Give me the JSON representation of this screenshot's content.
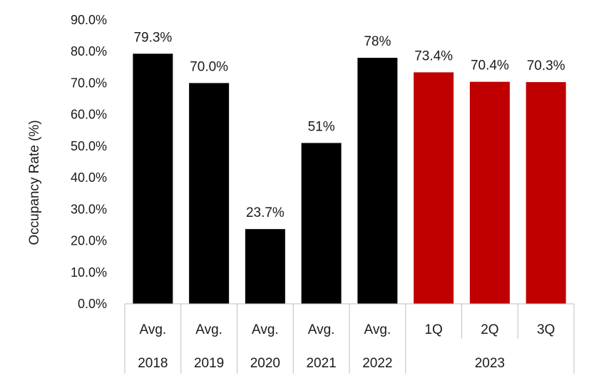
{
  "chart_data": {
    "type": "bar",
    "ylabel": "Occupancy Rate (%)",
    "xlabel": "",
    "title": "",
    "ylim": [
      0,
      90
    ],
    "ytick_step": 10,
    "ytick_labels": [
      "0.0%",
      "10.0%",
      "20.0%",
      "30.0%",
      "40.0%",
      "50.0%",
      "60.0%",
      "70.0%",
      "80.0%",
      "90.0%"
    ],
    "grid": false,
    "legend": "none",
    "categories": [
      {
        "line1": "Avg.",
        "line2": "2018"
      },
      {
        "line1": "Avg.",
        "line2": "2019"
      },
      {
        "line1": "Avg.",
        "line2": "2020"
      },
      {
        "line1": "Avg.",
        "line2": "2021"
      },
      {
        "line1": "Avg.",
        "line2": "2022"
      },
      {
        "line1": "1Q",
        "line2": ""
      },
      {
        "line1": "2Q",
        "line2": ""
      },
      {
        "line1": "3Q",
        "line2": ""
      }
    ],
    "group_labels": [
      {
        "label": "2023",
        "start": 5,
        "end": 7
      }
    ],
    "values": [
      79.3,
      70.0,
      23.7,
      51,
      78,
      73.4,
      70.4,
      70.3
    ],
    "data_labels": [
      "79.3%",
      "70.0%",
      "23.7%",
      "51%",
      "78%",
      "73.4%",
      "70.4%",
      "70.3%"
    ],
    "colors": [
      "#000000",
      "#000000",
      "#000000",
      "#000000",
      "#000000",
      "#c00000",
      "#c00000",
      "#c00000"
    ]
  }
}
